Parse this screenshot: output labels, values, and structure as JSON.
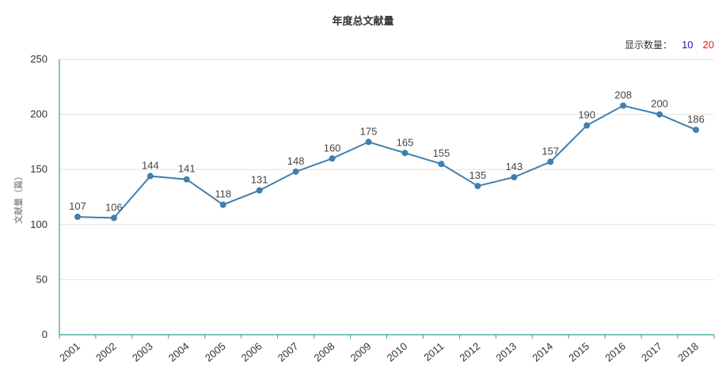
{
  "chart_data": {
    "type": "line",
    "title": "年度总文献量",
    "ylabel": "文献量（篇）",
    "xlabel": "",
    "categories": [
      "2001",
      "2002",
      "2003",
      "2004",
      "2005",
      "2006",
      "2007",
      "2008",
      "2009",
      "2010",
      "2011",
      "2012",
      "2013",
      "2014",
      "2015",
      "2016",
      "2017",
      "2018"
    ],
    "series": [
      {
        "values": [
          107,
          106,
          144,
          141,
          118,
          131,
          148,
          160,
          175,
          165,
          155,
          135,
          143,
          157,
          190,
          208,
          200,
          186
        ]
      }
    ],
    "ylim": [
      0,
      250
    ],
    "yticks": [
      "0",
      "50",
      "100",
      "150",
      "200",
      "250"
    ],
    "grid": true,
    "color": "#3f7fb0"
  },
  "controls": {
    "label": "显示数量：",
    "options": [
      "10",
      "20"
    ]
  }
}
